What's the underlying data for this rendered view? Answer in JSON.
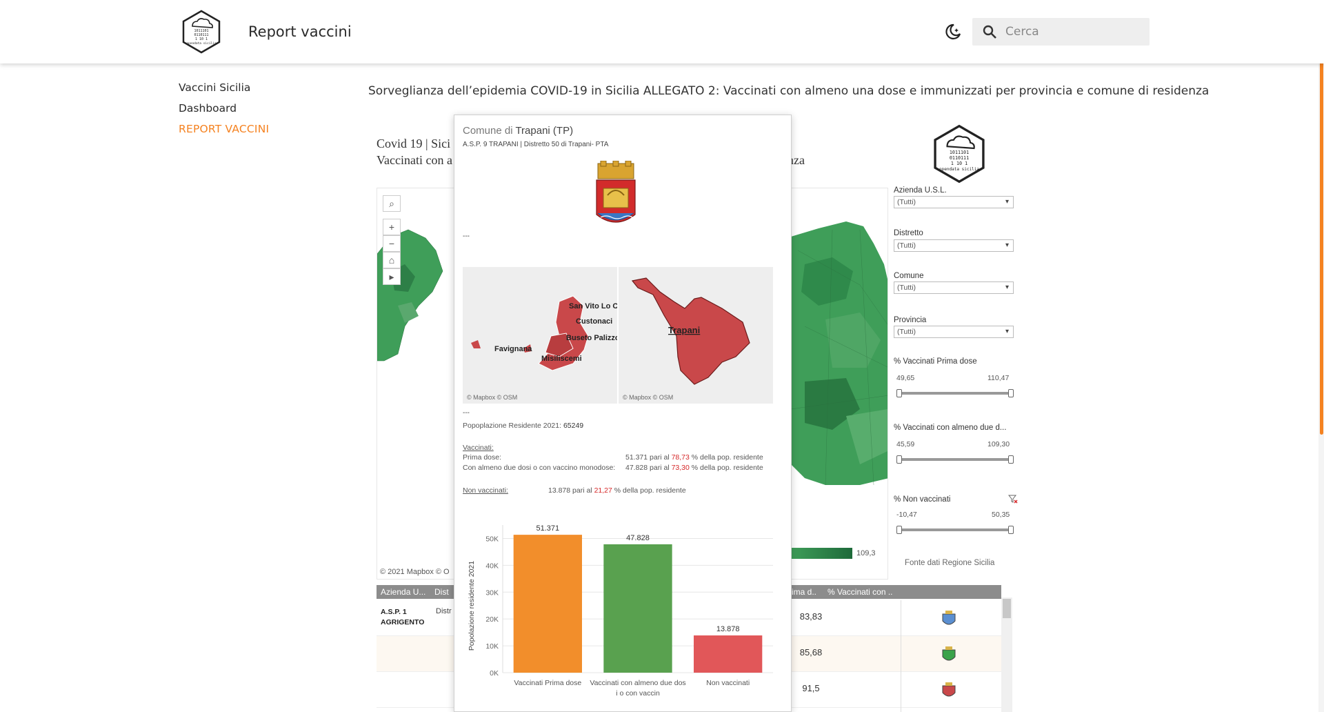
{
  "header": {
    "progress_pct": 14,
    "logo_name": "opendata sicilia",
    "site_title": "Report vaccini",
    "search_placeholder": "Cerca"
  },
  "nav": {
    "items": [
      {
        "label": "Vaccini Sicilia"
      },
      {
        "label": "Dashboard"
      },
      {
        "label": "REPORT VACCINI"
      }
    ]
  },
  "page": {
    "heading": "Sorveglianza dell’epidemia COVID-19 in Sicilia ALLEGATO 2: Vaccinati con almeno una dose e immunizzati per provincia e comune di residenza"
  },
  "viz": {
    "title_line1": "Covid 19 | Sici",
    "title_line2": "Vaccinati con a",
    "title_line3": "nza",
    "map_credit": "© 2021 Mapbox  © O",
    "legend_max": "109,3",
    "filters": {
      "azienda_label": "Azienda U.S.L.",
      "azienda_value": "(Tutti)",
      "distretto_label": "Distretto",
      "distretto_value": "(Tutti)",
      "comune_label": "Comune",
      "comune_value": "(Tutti)",
      "provincia_label": "Provincia",
      "provincia_value": "(Tutti)",
      "prima_label": "% Vaccinati Prima dose",
      "prima_min": "49,65",
      "prima_max": "110,47",
      "due_label": "% Vaccinati con almeno due d...",
      "due_min": "45,59",
      "due_max": "109,30",
      "non_label": "% Non vaccinati",
      "non_min": "-10,47",
      "non_max": "50,35"
    },
    "fonte": "Fonte dati Regione Sicilia",
    "table": {
      "headers": [
        "Azienda U...",
        "Dist",
        "rima d..",
        "% Vaccinati con .."
      ],
      "rows": [
        {
          "asp": "A.S.P. 1",
          "asp2": "AGRIGENTO",
          "dist": "Distr",
          "val": "83,83"
        },
        {
          "asp": "",
          "asp2": "",
          "dist": "",
          "val": "85,68"
        },
        {
          "asp": "",
          "asp2": "",
          "dist": "",
          "val": "91,5"
        }
      ]
    }
  },
  "tooltip": {
    "title_prefix": "Comune di ",
    "title_name": "Trapani (TP)",
    "subtitle": "A.S.P. 9 TRAPANI | Distretto 50 di Trapani- PTA",
    "dash1": "---",
    "dash2": "---",
    "map1_labels": [
      "San Vito Lo Ca",
      "Custonaci",
      "Buseto Palizzo",
      "Favignana",
      "Misiliscemi"
    ],
    "map2_label": "Trapani",
    "map_credit": "© Mapbox © OSM",
    "popolazione_label": "Popoplazione Residente 2021:",
    "popolazione_value": "65249",
    "vaccinati_label": "Vaccinati:",
    "prima_label": "Prima dose:",
    "prima_count": "51.371",
    "prima_pct": "78,73",
    "due_label": "Con almeno due dosi o con vaccino monodose:",
    "due_count": "47.828",
    "due_pct": "73,30",
    "pari_al": "pari al",
    "pct_suffix": "%  della pop. residente",
    "non_label": "Non vaccinati:",
    "non_count": "13.878",
    "non_pct": "21,27",
    "non_suffix": "%   della pop. residente"
  },
  "chart_data": {
    "type": "bar",
    "categories": [
      "Vaccinati Prima dose",
      "Vaccinati con almeno due dosi o con vaccin",
      "Non vaccinati"
    ],
    "values": [
      51371,
      47828,
      13878
    ],
    "value_labels": [
      "51.371",
      "47.828",
      "13.878"
    ],
    "colors": [
      "#f28e2b",
      "#59a14f",
      "#e15759"
    ],
    "ylabel": "Popolazione residente 2021",
    "yticks": [
      "0K",
      "10K",
      "20K",
      "30K",
      "40K",
      "50K"
    ],
    "ylim": [
      0,
      55000
    ],
    "grid": true
  },
  "colors": {
    "accent": "#f58220",
    "map_green": "#3f9e59",
    "comune_red": "#c9484a"
  }
}
